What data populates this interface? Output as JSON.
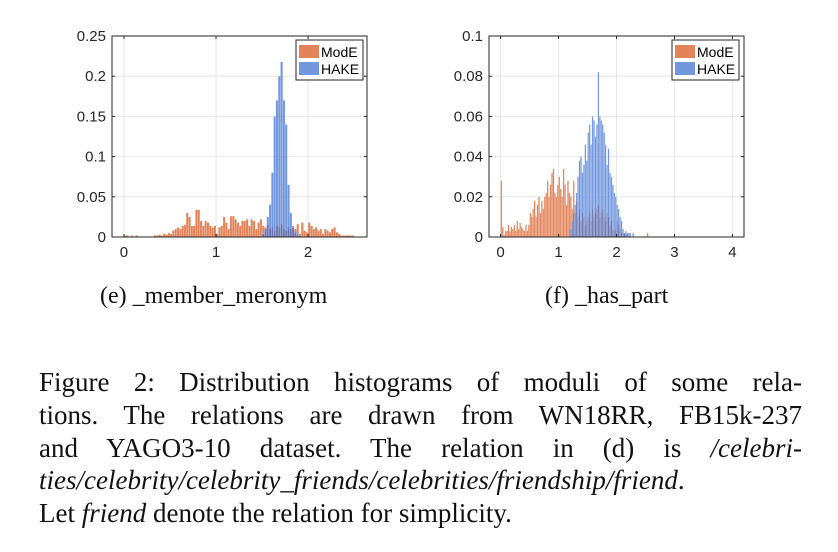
{
  "chart_data": [
    {
      "type": "histogram",
      "subcaption": "(e) _member_meronym",
      "xlim": [
        -0.13,
        2.64
      ],
      "ylim": [
        0,
        0.25
      ],
      "xticks": [
        "0",
        "1",
        "2"
      ],
      "xtick_values": [
        0,
        1,
        2
      ],
      "yticks": [
        "0",
        "0.05",
        "0.1",
        "0.15",
        "0.2",
        "0.25"
      ],
      "ytick_values": [
        0,
        0.05,
        0.1,
        0.15,
        0.2,
        0.25
      ],
      "grid": true,
      "legend_position": "top-right",
      "series": [
        {
          "name": "ModE",
          "color": "#D95319",
          "bin_start": 0,
          "bin_width": 0.025,
          "values": [
            0.002,
            0.002,
            0,
            0.002,
            0,
            0.002,
            0,
            0,
            0,
            0,
            0,
            0,
            0,
            0.002,
            0.002,
            0.003,
            0.002,
            0.004,
            0.003,
            0.005,
            0.004,
            0.008,
            0.01,
            0.012,
            0.01,
            0.014,
            0.015,
            0.03,
            0.025,
            0.014,
            0.014,
            0.034,
            0.034,
            0.02,
            0.014,
            0.02,
            0.018,
            0.014,
            0.012,
            0.014,
            0.004,
            0.012,
            0.014,
            0.025,
            0.018,
            0.01,
            0.026,
            0.026,
            0.022,
            0.018,
            0.014,
            0.02,
            0.02,
            0.022,
            0.014,
            0.022,
            0.02,
            0.01,
            0.018,
            0.022,
            0.014,
            0.012,
            0.015,
            0.01,
            0.012,
            0.008,
            0.014,
            0.012,
            0.016,
            0.01,
            0.008,
            0.012,
            0.01,
            0.014,
            0.01,
            0.016,
            0.004,
            0.018,
            0.008,
            0.006,
            0.018,
            0.014,
            0.01,
            0.012,
            0.008,
            0.01,
            0.004,
            0.01,
            0.008,
            0.006,
            0.01,
            0.012,
            0.006,
            0.004,
            0.002,
            0.002,
            0.002,
            0.002,
            0.002,
            0.002
          ]
        },
        {
          "name": "HAKE",
          "color": "#3B6FD1",
          "bin_start": 1.5,
          "bin_width": 0.025,
          "values": [
            0.004,
            0.01,
            0.025,
            0.04,
            0.08,
            0.15,
            0.17,
            0.2,
            0.218,
            0.17,
            0.14,
            0.065,
            0.03,
            0.012,
            0.006,
            0.003,
            0.002
          ]
        }
      ]
    },
    {
      "type": "histogram",
      "subcaption": "(f) _has_part",
      "xlim": [
        -0.2,
        4.2
      ],
      "ylim": [
        0,
        0.1
      ],
      "xticks": [
        "0",
        "1",
        "2",
        "3",
        "4"
      ],
      "xtick_values": [
        0,
        1,
        2,
        3,
        4
      ],
      "yticks": [
        "0",
        "0.02",
        "0.04",
        "0.06",
        "0.08",
        "0.1"
      ],
      "ytick_values": [
        0,
        0.02,
        0.04,
        0.06,
        0.08,
        0.1
      ],
      "grid": true,
      "legend_position": "top-right",
      "series": [
        {
          "name": "ModE",
          "color": "#D95319",
          "bin_start": 0,
          "bin_width": 0.025,
          "values": [
            0.028,
            0.005,
            0.001,
            0.003,
            0.003,
            0.006,
            0.003,
            0.005,
            0.004,
            0.006,
            0.003,
            0.008,
            0.004,
            0.007,
            0.005,
            0.004,
            0.003,
            0.006,
            0.003,
            0.006,
            0.012,
            0.01,
            0.014,
            0.018,
            0.01,
            0.016,
            0.02,
            0.012,
            0.018,
            0.014,
            0.02,
            0.022,
            0.028,
            0.02,
            0.026,
            0.032,
            0.034,
            0.022,
            0.02,
            0.026,
            0.03,
            0.024,
            0.02,
            0.034,
            0.026,
            0.016,
            0.028,
            0.022,
            0.02,
            0.014,
            0.028,
            0.012,
            0.018,
            0.01,
            0.014,
            0.008,
            0.012,
            0.01,
            0.006,
            0.008,
            0.01,
            0.012,
            0.008,
            0.014,
            0.01,
            0.012,
            0.014,
            0.016,
            0.01,
            0.012,
            0.014,
            0.01,
            0.008,
            0.012,
            0.01,
            0.006,
            0.008,
            0.004,
            0.003,
            0.004,
            0.008,
            0.006,
            0.004,
            0.002,
            0.002,
            0.002,
            0.001,
            0.001,
            0,
            0,
            0,
            0,
            0,
            0,
            0,
            0,
            0,
            0,
            0,
            0,
            0,
            0.002
          ]
        },
        {
          "name": "HAKE",
          "color": "#3B6FD1",
          "bin_start": 1.2,
          "bin_width": 0.025,
          "values": [
            0.004,
            0.008,
            0.012,
            0.016,
            0.022,
            0.03,
            0.038,
            0.04,
            0.032,
            0.036,
            0.046,
            0.038,
            0.052,
            0.056,
            0.046,
            0.06,
            0.058,
            0.05,
            0.056,
            0.082,
            0.06,
            0.058,
            0.056,
            0.052,
            0.046,
            0.036,
            0.044,
            0.032,
            0.03,
            0.026,
            0.022,
            0.02,
            0.016,
            0.014,
            0.01,
            0.008,
            0.004,
            0.002,
            0.003,
            0.002,
            0.002,
            0.002,
            0,
            0.002
          ]
        }
      ]
    }
  ],
  "caption": {
    "line1": "Figure 2: Distribution histograms of moduli of some rela-",
    "line2": "tions. The relations are drawn from WN18RR, FB15k-237",
    "line3_plain": "and YAGO3-10 dataset. The relation in (d) is",
    "line3_italic": "/celebri-",
    "line4_italic": "ties/celebrity/celebrity_friends/celebrities/friendship/friend",
    "line4_end": ".",
    "line5_start": "Let",
    "line5_italic": "friend",
    "line5_end": "denote the relation for simplicity."
  }
}
